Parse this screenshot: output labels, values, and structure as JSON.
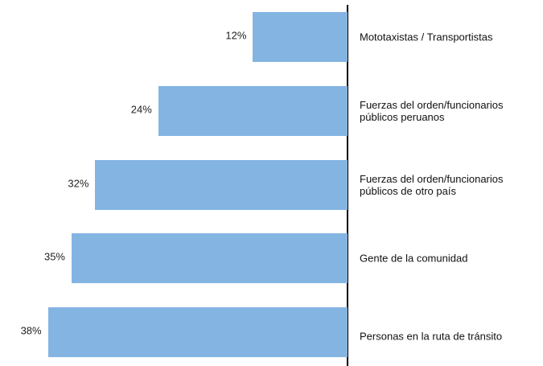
{
  "chart_data": {
    "type": "bar",
    "orientation": "horizontal",
    "categories": [
      "Mototaxistas / Transportistas",
      "Fuerzas del orden/funcionarios públicos peruanos",
      "Fuerzas del orden/funcionarios públicos de otro país",
      "Gente de la comunidad",
      "Personas en la ruta de tránsito"
    ],
    "values": [
      12,
      24,
      32,
      35,
      38
    ],
    "value_labels": [
      "12%",
      "24%",
      "32%",
      "35%",
      "38%"
    ],
    "color": "#84b4e2"
  }
}
